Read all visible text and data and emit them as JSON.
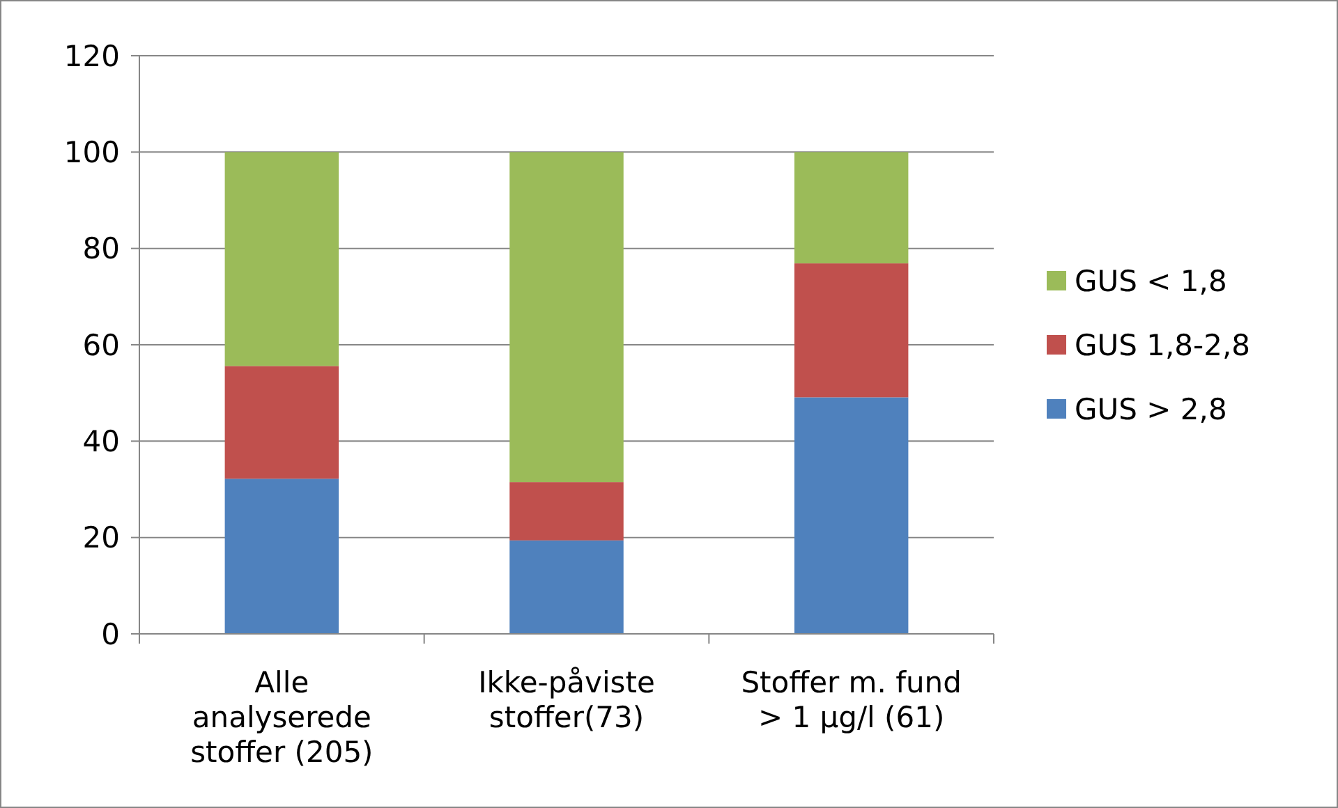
{
  "chart_data": {
    "type": "bar",
    "stacked": true,
    "categories": [
      "Alle analyserede stoffer (205)",
      "Ikke-påviste stoffer(73)",
      "Stoffer m. fund > 1 µg/l (61)"
    ],
    "series": [
      {
        "name": "GUS > 2,8",
        "color": "#4f81bd",
        "values": [
          32.2,
          19.4,
          49.1
        ]
      },
      {
        "name": "GUS 1,8-2,8",
        "color": "#c0504d",
        "values": [
          23.4,
          12.1,
          27.8
        ]
      },
      {
        "name": "GUS < 1,8",
        "color": "#9bbb59",
        "values": [
          44.4,
          68.5,
          23.1
        ]
      }
    ],
    "ylim": [
      0,
      120
    ],
    "yticks": [
      0,
      20,
      40,
      60,
      80,
      100,
      120
    ],
    "grid": "y",
    "legend": "right"
  }
}
